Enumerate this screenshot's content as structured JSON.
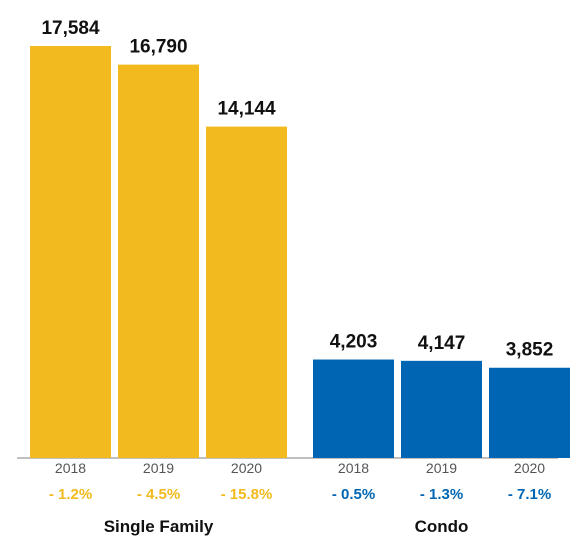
{
  "chart_data": {
    "type": "bar",
    "groups": [
      {
        "name": "Single Family",
        "color": "#F2BA1F",
        "categories": [
          "2018",
          "2019",
          "2020"
        ],
        "values": [
          17584,
          16790,
          14144
        ],
        "value_labels": [
          "17,584",
          "16,790",
          "14,144"
        ],
        "changes": [
          "- 1.2%",
          "- 4.5%",
          "- 15.8%"
        ]
      },
      {
        "name": "Condo",
        "color": "#0066B3",
        "categories": [
          "2018",
          "2019",
          "2020"
        ],
        "values": [
          4203,
          4147,
          3852
        ],
        "value_labels": [
          "4,203",
          "4,147",
          "3,852"
        ],
        "changes": [
          "- 0.5%",
          "- 1.3%",
          "- 7.1%"
        ]
      }
    ],
    "ylim": [
      0,
      17584
    ],
    "grid": false,
    "axis_color": "#AAAAAA"
  }
}
